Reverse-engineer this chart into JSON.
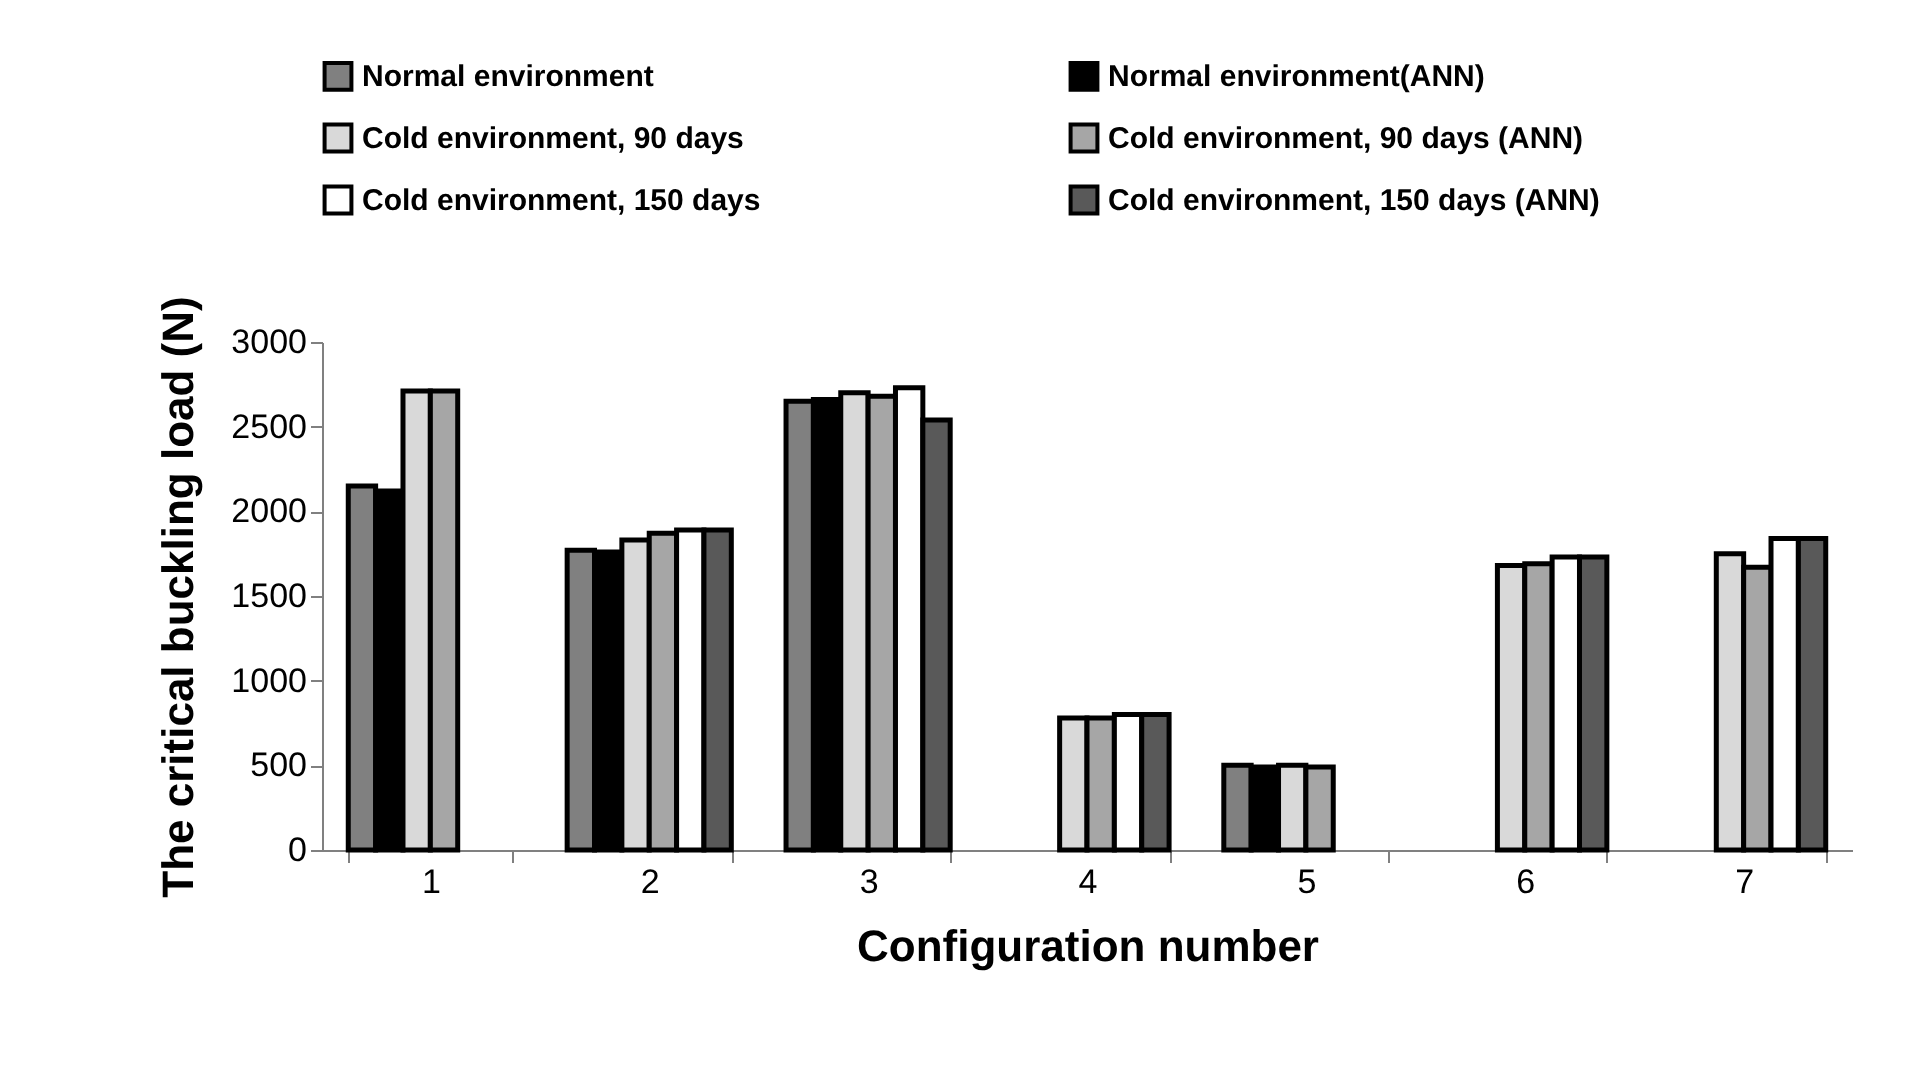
{
  "chart_data": {
    "type": "bar",
    "xlabel": "Configuration number",
    "ylabel": "The critical buckling load  (N)",
    "categories": [
      "1",
      "2",
      "3",
      "4",
      "5",
      "6",
      "7"
    ],
    "series": [
      {
        "name": "Normal environment",
        "color": "#808080",
        "values": [
          2150,
          1770,
          2650,
          null,
          500,
          null,
          null
        ]
      },
      {
        "name": "Normal environment(ANN)",
        "color": "#000000",
        "values": [
          2120,
          1760,
          2660,
          null,
          490,
          null,
          null
        ]
      },
      {
        "name": "Cold environment, 90 days",
        "color": "#d9d9d9",
        "values": [
          2710,
          1830,
          2700,
          780,
          500,
          1680,
          1750
        ]
      },
      {
        "name": "Cold environment, 90 days (ANN)",
        "color": "#a6a6a6",
        "values": [
          2710,
          1870,
          2680,
          780,
          490,
          1690,
          1670
        ]
      },
      {
        "name": "Cold environment, 150 days",
        "color": "#ffffff",
        "values": [
          null,
          1890,
          2730,
          800,
          null,
          1730,
          1840
        ]
      },
      {
        "name": "Cold environment, 150 days (ANN)",
        "color": "#595959",
        "values": [
          null,
          1890,
          2540,
          800,
          null,
          1730,
          1840
        ]
      }
    ],
    "ylim": [
      0,
      3000
    ],
    "yticks": [
      0,
      500,
      1000,
      1500,
      2000,
      2500,
      3000
    ],
    "grid": false,
    "legend": "top"
  }
}
